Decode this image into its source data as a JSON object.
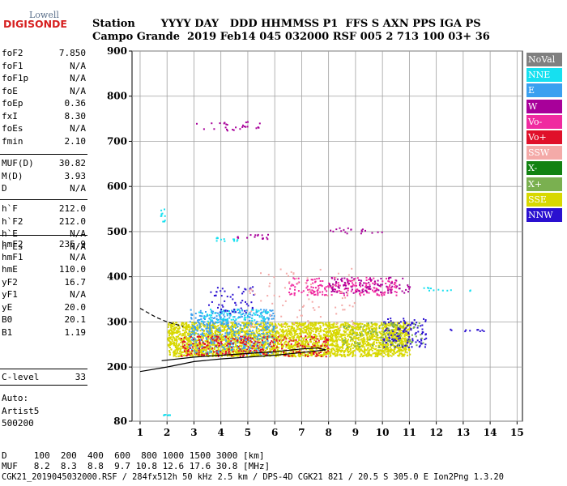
{
  "logo": {
    "line1": "Lowell",
    "line2": "DIGISONDE"
  },
  "header": {
    "labels": "Station       YYYY DAY   DDD HHMMSS P1  FFS S AXN PPS IGA PS",
    "values": "Campo Grande  2019 Feb14 045 032000 RSF 005 2 713 100 03+ 36"
  },
  "left_panel": {
    "group1": [
      {
        "key": "foF2",
        "value": "7.850"
      },
      {
        "key": "foF1",
        "value": "N/A"
      },
      {
        "key": "foF1p",
        "value": "N/A"
      },
      {
        "key": "foE",
        "value": "N/A"
      },
      {
        "key": "foEp",
        "value": "0.36"
      },
      {
        "key": "fxI",
        "value": "8.30"
      },
      {
        "key": "foEs",
        "value": "N/A"
      },
      {
        "key": "fmin",
        "value": "2.10"
      }
    ],
    "group2": [
      {
        "key": "MUF(D)",
        "value": "30.82"
      },
      {
        "key": "M(D)",
        "value": "3.93"
      },
      {
        "key": "D",
        "value": "N/A"
      }
    ],
    "group3": [
      {
        "key": "h`F",
        "value": "212.0"
      },
      {
        "key": "h`F2",
        "value": "212.0"
      },
      {
        "key": "h`E",
        "value": "N/A"
      },
      {
        "key": "h`Es",
        "value": "N/A"
      }
    ],
    "group4": [
      {
        "key": "hmF2",
        "value": "235.9"
      },
      {
        "key": "hmF1",
        "value": "N/A"
      },
      {
        "key": "hmE",
        "value": "110.0"
      },
      {
        "key": "yF2",
        "value": "16.7"
      },
      {
        "key": "yF1",
        "value": "N/A"
      },
      {
        "key": "yE",
        "value": "20.0"
      },
      {
        "key": "B0",
        "value": "20.1"
      },
      {
        "key": "B1",
        "value": "1.19"
      }
    ],
    "group5": [
      {
        "key": "C-level",
        "value": "33"
      }
    ],
    "auto": [
      "Auto:",
      "Artist5",
      "500200"
    ]
  },
  "legend": [
    {
      "label": "NoVal",
      "color": "#808080",
      "text": "#ffffff"
    },
    {
      "label": "NNE",
      "color": "#16e0f0",
      "text": "#ffffff"
    },
    {
      "label": "E",
      "color": "#3aa0f0",
      "text": "#ffffff"
    },
    {
      "label": "W",
      "color": "#a8009a",
      "text": "#ffffff"
    },
    {
      "label": "Vo-",
      "color": "#f02aa0",
      "text": "#ffffff"
    },
    {
      "label": "Vo+",
      "color": "#e0102a",
      "text": "#ffffff"
    },
    {
      "label": "SSW",
      "color": "#f4aaa8",
      "text": "#ffffff"
    },
    {
      "label": "X-",
      "color": "#128212",
      "text": "#ffffff"
    },
    {
      "label": "X+",
      "color": "#7ab050",
      "text": "#ffffff"
    },
    {
      "label": "SSE",
      "color": "#d8d800",
      "text": "#ffffff"
    },
    {
      "label": "NNW",
      "color": "#2a10d0",
      "text": "#ffffff"
    }
  ],
  "chart_data": {
    "type": "scatter",
    "title": "",
    "xlabel": "",
    "ylabel": "",
    "xlim": [
      0.7,
      15.2
    ],
    "ylim": [
      80,
      900
    ],
    "x_ticks": [
      1,
      2,
      3,
      4,
      5,
      6,
      7,
      8,
      9,
      10,
      11,
      12,
      13,
      14,
      15
    ],
    "y_ticks": [
      80,
      200,
      300,
      400,
      500,
      600,
      700,
      800,
      900
    ],
    "grid": true,
    "traces": [
      {
        "name": "fit-lower",
        "points": [
          [
            1.0,
            190
          ],
          [
            2.0,
            200
          ],
          [
            3.0,
            212
          ],
          [
            4.0,
            218
          ],
          [
            5.0,
            222
          ],
          [
            6.0,
            226
          ],
          [
            7.0,
            232
          ],
          [
            7.9,
            238
          ]
        ]
      },
      {
        "name": "fit-upper",
        "points": [
          [
            1.8,
            214
          ],
          [
            3.0,
            222
          ],
          [
            4.0,
            226
          ],
          [
            5.0,
            230
          ],
          [
            6.0,
            234
          ],
          [
            7.0,
            240
          ],
          [
            7.6,
            242
          ]
        ]
      },
      {
        "name": "fit-ext",
        "points": [
          [
            1.0,
            330
          ],
          [
            1.6,
            310
          ],
          [
            2.0,
            300
          ],
          [
            2.6,
            290
          ]
        ]
      },
      {
        "name": "fit-close",
        "points": [
          [
            7.6,
            242
          ],
          [
            7.9,
            238
          ]
        ]
      }
    ],
    "clusters": [
      {
        "color": "#d8d800",
        "x": [
          2.0,
          11.0
        ],
        "y": [
          225,
          300
        ],
        "density": 5
      },
      {
        "color": "#3aa0f0",
        "x": [
          2.8,
          6.0
        ],
        "y": [
          230,
          330
        ],
        "density": 1.6
      },
      {
        "color": "#16e0f0",
        "x": [
          3.0,
          5.8
        ],
        "y": [
          300,
          330
        ],
        "density": 0.8
      },
      {
        "color": "#f02aa0",
        "x": [
          6.5,
          10.5
        ],
        "y": [
          360,
          400
        ],
        "density": 1.4
      },
      {
        "color": "#a8009a",
        "x": [
          8.0,
          11.0
        ],
        "y": [
          365,
          400
        ],
        "density": 1.0
      },
      {
        "color": "#2a10d0",
        "x": [
          10.0,
          11.6
        ],
        "y": [
          245,
          310
        ],
        "density": 1.2
      },
      {
        "color": "#e0102a",
        "x": [
          2.5,
          8.0
        ],
        "y": [
          225,
          270
        ],
        "density": 1.2
      },
      {
        "color": "#2a10d0",
        "x": [
          3.5,
          5.2
        ],
        "y": [
          320,
          380
        ],
        "density": 0.5
      },
      {
        "color": "#a8009a",
        "x": [
          4.5,
          6.0
        ],
        "y": [
          485,
          495
        ],
        "density": 0.6
      },
      {
        "color": "#16e0f0",
        "x": [
          3.8,
          4.6
        ],
        "y": [
          480,
          490
        ],
        "density": 0.5
      },
      {
        "color": "#a8009a",
        "x": [
          8.0,
          10.0
        ],
        "y": [
          495,
          510
        ],
        "density": 0.4
      },
      {
        "color": "#a8009a",
        "x": [
          3.0,
          5.5
        ],
        "y": [
          725,
          745
        ],
        "density": 0.4
      },
      {
        "color": "#16e0f0",
        "x": [
          11.5,
          13.5
        ],
        "y": [
          370,
          378
        ],
        "density": 0.3
      },
      {
        "color": "#2a10d0",
        "x": [
          12.5,
          14.0
        ],
        "y": [
          280,
          285
        ],
        "density": 0.3
      },
      {
        "color": "#7ab050",
        "x": [
          8.5,
          11.5
        ],
        "y": [
          245,
          300
        ],
        "density": 0.6
      },
      {
        "color": "#f4aaa8",
        "x": [
          5.0,
          9.0
        ],
        "y": [
          280,
          420
        ],
        "density": 0.15
      },
      {
        "color": "#16e0f0",
        "x": [
          1.7,
          1.9
        ],
        "y": [
          520,
          560
        ],
        "density": 0.3
      },
      {
        "color": "#16e0f0",
        "x": [
          1.8,
          2.1
        ],
        "y": [
          94,
          96
        ],
        "density": 0.3
      }
    ]
  },
  "footer": {
    "row_d": "D     100  200  400  600  800 1000 1500 3000 [km]",
    "row_muf": "MUF   8.2  8.3  8.8  9.7 10.8 12.6 17.6 30.8 [MHz]",
    "info": "CGK21_2019045032000.RSF / 284fx512h 50 kHz 2.5 km / DPS-4D CGK21 821 / 20.5 S 305.0 E Ion2Png 1.3.20"
  }
}
